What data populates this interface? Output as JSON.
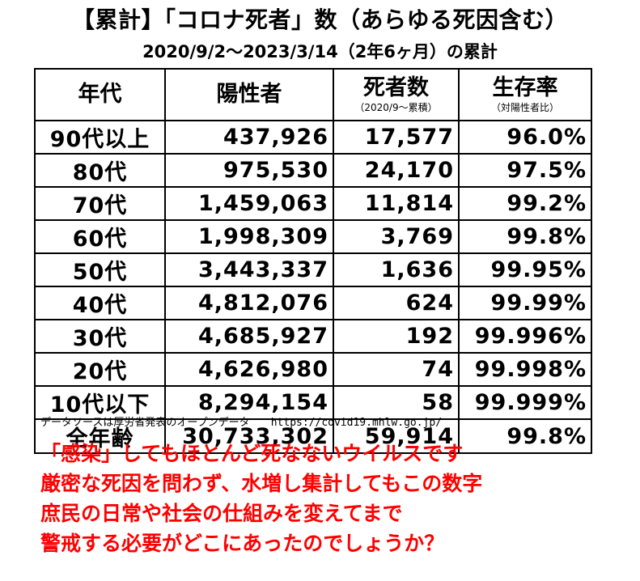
{
  "title": "【累計】「コロナ死者」数（あらゆる死因含む）",
  "subtitle": "2020/9/2〜2023/3/14（2年6ヶ月）の累計",
  "table": {
    "headers": {
      "age": "年代",
      "positives": "陽性者",
      "deaths": "死者数",
      "deaths_note": "（2020/9〜累積）",
      "survival": "生存率",
      "survival_note": "（対陽性者比）"
    },
    "rows": [
      {
        "age": "90代以上",
        "positives": "437,926",
        "deaths": "17,577",
        "survival": "96.0%"
      },
      {
        "age": "80代",
        "positives": "975,530",
        "deaths": "24,170",
        "survival": "97.5%"
      },
      {
        "age": "70代",
        "positives": "1,459,063",
        "deaths": "11,814",
        "survival": "99.2%"
      },
      {
        "age": "60代",
        "positives": "1,998,309",
        "deaths": "3,769",
        "survival": "99.8%"
      },
      {
        "age": "50代",
        "positives": "3,443,337",
        "deaths": "1,636",
        "survival": "99.95%"
      },
      {
        "age": "40代",
        "positives": "4,812,076",
        "deaths": "624",
        "survival": "99.99%"
      },
      {
        "age": "30代",
        "positives": "4,685,927",
        "deaths": "192",
        "survival": "99.996%"
      },
      {
        "age": "20代",
        "positives": "4,626,980",
        "deaths": "74",
        "survival": "99.998%"
      },
      {
        "age": "10代以下",
        "positives": "8,294,154",
        "deaths": "58",
        "survival": "99.999%"
      }
    ],
    "total": {
      "age": "全年齢",
      "positives": "30,733,302",
      "deaths": "59,914",
      "survival": "99.8%"
    }
  },
  "source": {
    "text": "データソースは厚労省発表のオープンデータ",
    "url": "https://covid19.mhlw.go.jp/"
  },
  "message": {
    "lines": [
      "「感染」してもほとんど死なないウイルスです",
      "厳密な死因を問わず、水増し集計してもこの数字",
      "庶民の日常や社会の仕組みを変えてまで",
      "警戒する必要がどこにあったのでしょうか？"
    ],
    "color": "#ff0000"
  }
}
